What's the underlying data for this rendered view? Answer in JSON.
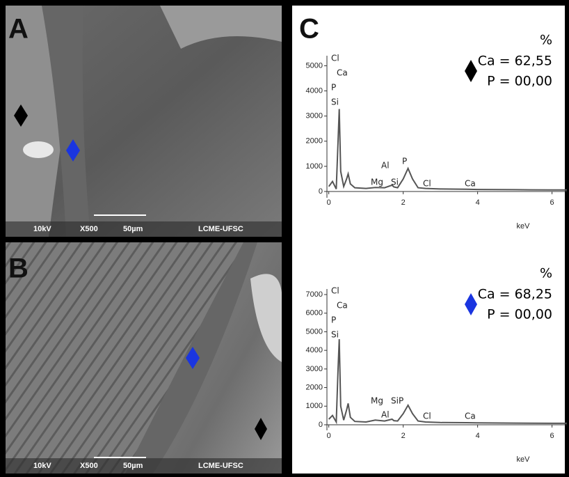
{
  "panels": [
    {
      "label": "A",
      "voltage": "10kV",
      "magnification": "X500",
      "scale": "50µm",
      "lab": "LCME-UFSC"
    },
    {
      "label": "B",
      "voltage": "10kV",
      "magnification": "X500",
      "scale": "50µm",
      "lab": "LCME-UFSC"
    }
  ],
  "panel_c_label": "C",
  "chart_data": [
    {
      "type": "line",
      "x_label": "keV",
      "unit_label": "%",
      "annotations": [
        "Ca = 62,55",
        "P = 00,00"
      ],
      "marker_color": "#000000",
      "element_labels": [
        "Cl",
        "Ca",
        "P",
        "Si",
        "Al",
        "Mg",
        "Si",
        "P",
        "Cl",
        "Ca"
      ],
      "x": [
        0,
        0.1,
        0.2,
        0.25,
        0.28,
        0.32,
        0.4,
        0.48,
        0.52,
        0.58,
        0.7,
        1.0,
        1.25,
        1.5,
        1.7,
        1.75,
        1.85,
        2.0,
        2.13,
        2.25,
        2.4,
        2.6,
        3.0,
        3.7,
        4.0,
        5.0,
        6.0,
        6.4
      ],
      "series": [
        {
          "color": "#555555",
          "values": [
            200,
            400,
            100,
            2000,
            3280,
            800,
            200,
            500,
            700,
            300,
            150,
            120,
            160,
            150,
            250,
            180,
            150,
            500,
            920,
            500,
            150,
            120,
            100,
            90,
            80,
            70,
            60,
            60
          ]
        }
      ],
      "xlim": [
        -0.05,
        6.4
      ],
      "xticks": [
        0,
        2,
        4,
        6
      ],
      "ylim": [
        -250,
        5400
      ],
      "yticks": [
        0,
        1000,
        2000,
        3000,
        4000,
        5000
      ]
    },
    {
      "type": "line",
      "x_label": "keV",
      "unit_label": "%",
      "annotations": [
        "Ca = 68,25",
        "P = 00,00"
      ],
      "marker_color": "#1a35e0",
      "element_labels": [
        "Cl",
        "Ca",
        "P",
        "Si",
        "Mg",
        "Al",
        "SiP",
        "Cl",
        "Ca"
      ],
      "x": [
        0,
        0.1,
        0.2,
        0.25,
        0.28,
        0.32,
        0.4,
        0.48,
        0.52,
        0.58,
        0.7,
        1.0,
        1.25,
        1.5,
        1.7,
        1.75,
        1.85,
        2.0,
        2.13,
        2.25,
        2.4,
        2.6,
        3.0,
        3.7,
        4.0,
        5.0,
        6.0,
        6.4
      ],
      "series": [
        {
          "color": "#555555",
          "values": [
            300,
            500,
            150,
            3000,
            4600,
            1000,
            250,
            800,
            1150,
            400,
            180,
            150,
            250,
            200,
            300,
            220,
            200,
            600,
            1050,
            600,
            200,
            150,
            120,
            110,
            100,
            90,
            80,
            80
          ]
        }
      ],
      "xlim": [
        -0.05,
        6.4
      ],
      "xticks": [
        0,
        2,
        4,
        6
      ],
      "ylim": [
        -300,
        7300
      ],
      "yticks": [
        0,
        1000,
        2000,
        3000,
        4000,
        5000,
        6000,
        7000
      ]
    }
  ]
}
